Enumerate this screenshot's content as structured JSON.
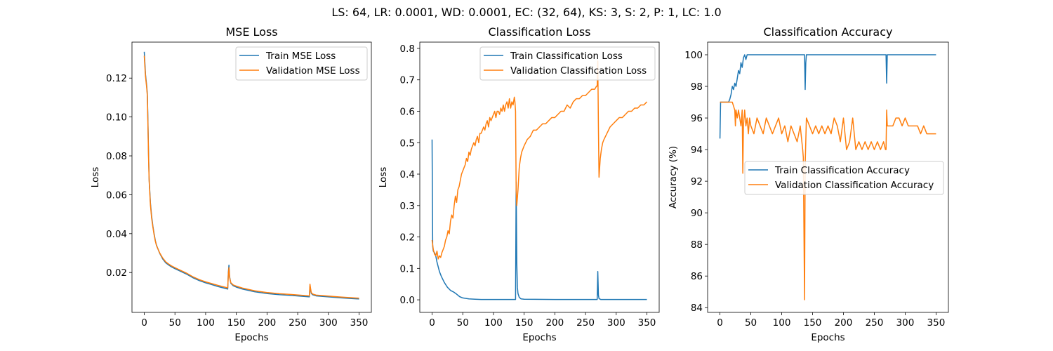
{
  "figure": {
    "suptitle": "LS: 64, LR: 0.0001, WD: 0.0001, EC: (32, 64), KS: 3, S: 2, P: 1, LC: 1.0"
  },
  "colors": {
    "train": "#1f77b4",
    "validation": "#ff7f0e"
  },
  "chart_data": [
    {
      "type": "line",
      "title": "MSE Loss",
      "xlabel": "Epochs",
      "ylabel": "Loss",
      "xlim": [
        -20,
        370
      ],
      "ylim": [
        -0.0005,
        0.1385
      ],
      "xticks": [
        0,
        50,
        100,
        150,
        200,
        250,
        300,
        350
      ],
      "yticks": [
        0.02,
        0.04,
        0.06,
        0.08,
        0.1,
        0.12
      ],
      "ytick_labels": [
        "0.02",
        "0.04",
        "0.06",
        "0.08",
        "0.10",
        "0.12"
      ],
      "legend": "upper right",
      "series": [
        {
          "name": "Train MSE Loss",
          "color": "#1f77b4",
          "x": [
            0,
            1,
            2,
            3,
            4,
            5,
            6,
            7,
            8,
            10,
            12,
            14,
            16,
            18,
            20,
            25,
            30,
            35,
            40,
            45,
            50,
            60,
            70,
            80,
            90,
            100,
            110,
            120,
            130,
            136,
            137,
            138,
            139,
            141,
            145,
            150,
            160,
            180,
            200,
            220,
            240,
            260,
            269,
            270,
            271,
            272,
            274,
            280,
            300,
            320,
            340,
            350
          ],
          "y": [
            0.1335,
            0.128,
            0.122,
            0.119,
            0.116,
            0.112,
            0.098,
            0.081,
            0.068,
            0.056,
            0.049,
            0.044,
            0.04,
            0.0365,
            0.034,
            0.03,
            0.027,
            0.025,
            0.0238,
            0.0228,
            0.022,
            0.0205,
            0.019,
            0.0172,
            0.0158,
            0.0147,
            0.0138,
            0.0128,
            0.012,
            0.0115,
            0.02,
            0.0238,
            0.018,
            0.0145,
            0.0132,
            0.0125,
            0.0115,
            0.0101,
            0.0092,
            0.0086,
            0.0082,
            0.0077,
            0.0075,
            0.0128,
            0.0112,
            0.0094,
            0.0086,
            0.008,
            0.0075,
            0.007,
            0.0066,
            0.0064
          ]
        },
        {
          "name": "Validation MSE Loss",
          "color": "#ff7f0e",
          "x": [
            0,
            1,
            2,
            3,
            4,
            5,
            6,
            7,
            8,
            10,
            12,
            14,
            16,
            18,
            20,
            25,
            30,
            35,
            40,
            45,
            50,
            60,
            70,
            80,
            90,
            100,
            110,
            120,
            130,
            136,
            137,
            138,
            139,
            141,
            145,
            150,
            160,
            180,
            200,
            220,
            240,
            260,
            269,
            270,
            271,
            272,
            274,
            280,
            300,
            320,
            340,
            350
          ],
          "y": [
            0.1315,
            0.126,
            0.121,
            0.118,
            0.115,
            0.111,
            0.096,
            0.079,
            0.067,
            0.055,
            0.048,
            0.0435,
            0.0395,
            0.0362,
            0.0338,
            0.0302,
            0.0275,
            0.0255,
            0.0243,
            0.0233,
            0.0225,
            0.021,
            0.0195,
            0.0177,
            0.0163,
            0.0152,
            0.0143,
            0.0134,
            0.0126,
            0.0121,
            0.019,
            0.0225,
            0.0175,
            0.0148,
            0.0136,
            0.013,
            0.012,
            0.0106,
            0.0097,
            0.0091,
            0.0087,
            0.0082,
            0.008,
            0.014,
            0.0118,
            0.0098,
            0.009,
            0.0084,
            0.0079,
            0.0074,
            0.007,
            0.0068
          ]
        }
      ]
    },
    {
      "type": "line",
      "title": "Classification Loss",
      "xlabel": "Epochs",
      "ylabel": "Loss",
      "xlim": [
        -20,
        370
      ],
      "ylim": [
        -0.04,
        0.82
      ],
      "xticks": [
        0,
        50,
        100,
        150,
        200,
        250,
        300,
        350
      ],
      "yticks": [
        0.0,
        0.1,
        0.2,
        0.3,
        0.4,
        0.5,
        0.6,
        0.7,
        0.8
      ],
      "ytick_labels": [
        "0.0",
        "0.1",
        "0.2",
        "0.3",
        "0.4",
        "0.5",
        "0.6",
        "0.7",
        "0.8"
      ],
      "legend": "upper right",
      "series": [
        {
          "name": "Train Classification Loss",
          "color": "#1f77b4",
          "x": [
            0,
            1,
            2,
            4,
            6,
            8,
            10,
            12,
            15,
            20,
            25,
            30,
            35,
            40,
            45,
            50,
            60,
            70,
            80,
            100,
            120,
            136,
            137,
            138,
            139,
            140,
            142,
            145,
            150,
            200,
            250,
            269,
            270,
            271,
            272,
            275,
            300,
            350
          ],
          "y": [
            0.51,
            0.17,
            0.155,
            0.15,
            0.14,
            0.12,
            0.105,
            0.09,
            0.075,
            0.055,
            0.04,
            0.03,
            0.025,
            0.018,
            0.01,
            0.006,
            0.003,
            0.002,
            0.001,
            0.001,
            0.001,
            0.001,
            0.375,
            0.12,
            0.04,
            0.02,
            0.008,
            0.003,
            0.002,
            0.001,
            0.001,
            0.001,
            0.09,
            0.015,
            0.004,
            0.001,
            0.001,
            0.001
          ]
        },
        {
          "name": "Validation Classification Loss",
          "color": "#ff7f0e",
          "x": [
            0,
            2,
            4,
            6,
            8,
            10,
            12,
            14,
            16,
            18,
            20,
            22,
            24,
            26,
            28,
            30,
            32,
            34,
            36,
            38,
            40,
            42,
            44,
            46,
            48,
            50,
            52,
            54,
            56,
            58,
            60,
            62,
            64,
            66,
            68,
            70,
            72,
            74,
            76,
            78,
            80,
            82,
            84,
            86,
            88,
            90,
            92,
            94,
            96,
            98,
            100,
            102,
            104,
            106,
            108,
            110,
            112,
            114,
            116,
            118,
            120,
            122,
            124,
            126,
            128,
            130,
            132,
            134,
            135,
            136,
            137,
            138,
            140,
            142,
            144,
            146,
            148,
            150,
            155,
            160,
            165,
            170,
            175,
            180,
            185,
            190,
            195,
            200,
            205,
            210,
            215,
            220,
            225,
            230,
            235,
            240,
            245,
            250,
            255,
            260,
            265,
            268,
            269,
            270,
            271,
            272,
            274,
            276,
            278,
            280,
            285,
            290,
            295,
            300,
            305,
            310,
            315,
            320,
            325,
            330,
            335,
            340,
            345,
            350
          ],
          "y": [
            0.19,
            0.16,
            0.145,
            0.14,
            0.155,
            0.13,
            0.14,
            0.135,
            0.15,
            0.16,
            0.17,
            0.19,
            0.2,
            0.22,
            0.21,
            0.25,
            0.27,
            0.26,
            0.3,
            0.33,
            0.31,
            0.35,
            0.36,
            0.38,
            0.4,
            0.41,
            0.42,
            0.43,
            0.45,
            0.44,
            0.47,
            0.46,
            0.48,
            0.49,
            0.5,
            0.49,
            0.51,
            0.52,
            0.5,
            0.53,
            0.53,
            0.54,
            0.55,
            0.54,
            0.56,
            0.57,
            0.55,
            0.58,
            0.57,
            0.58,
            0.59,
            0.6,
            0.58,
            0.6,
            0.6,
            0.59,
            0.61,
            0.6,
            0.62,
            0.6,
            0.62,
            0.63,
            0.61,
            0.64,
            0.61,
            0.63,
            0.62,
            0.645,
            0.63,
            0.6,
            0.35,
            0.3,
            0.35,
            0.42,
            0.45,
            0.47,
            0.48,
            0.49,
            0.51,
            0.52,
            0.54,
            0.54,
            0.55,
            0.56,
            0.56,
            0.57,
            0.58,
            0.58,
            0.59,
            0.6,
            0.6,
            0.62,
            0.61,
            0.63,
            0.64,
            0.64,
            0.65,
            0.65,
            0.66,
            0.67,
            0.67,
            0.68,
            0.68,
            0.76,
            0.55,
            0.39,
            0.45,
            0.48,
            0.5,
            0.51,
            0.53,
            0.55,
            0.56,
            0.57,
            0.58,
            0.58,
            0.59,
            0.6,
            0.6,
            0.61,
            0.61,
            0.62,
            0.62,
            0.63
          ]
        }
      ]
    },
    {
      "type": "line",
      "title": "Classification Accuracy",
      "xlabel": "Epochs",
      "ylabel": "Accuracy (%)",
      "xlim": [
        -20,
        370
      ],
      "ylim": [
        83.7,
        100.8
      ],
      "xticks": [
        0,
        50,
        100,
        150,
        200,
        250,
        300,
        350
      ],
      "yticks": [
        84,
        86,
        88,
        90,
        92,
        94,
        96,
        98,
        100
      ],
      "ytick_labels": [
        "84",
        "86",
        "88",
        "90",
        "92",
        "94",
        "96",
        "98",
        "100"
      ],
      "legend": "center right",
      "series": [
        {
          "name": "Train Classification Accuracy",
          "color": "#1f77b4",
          "x": [
            0,
            1,
            2,
            4,
            6,
            8,
            10,
            12,
            14,
            16,
            18,
            20,
            22,
            24,
            26,
            28,
            30,
            32,
            34,
            36,
            38,
            40,
            42,
            44,
            46,
            48,
            50,
            100,
            136,
            137,
            138,
            139,
            140,
            142,
            150,
            200,
            268,
            269,
            270,
            271,
            272,
            280,
            350
          ],
          "y": [
            94.7,
            97.0,
            97.0,
            97.0,
            97.0,
            97.0,
            97.0,
            97.0,
            97.0,
            97.2,
            97.5,
            98.0,
            97.8,
            98.2,
            98.0,
            98.5,
            99.0,
            98.8,
            99.5,
            99.2,
            99.8,
            100.0,
            99.7,
            100.0,
            100.0,
            100.0,
            100.0,
            100.0,
            100.0,
            100.0,
            97.8,
            99.5,
            100.0,
            100.0,
            100.0,
            100.0,
            100.0,
            100.0,
            98.2,
            100.0,
            100.0,
            100.0,
            100.0
          ]
        },
        {
          "name": "Validation Classification Accuracy",
          "color": "#ff7f0e",
          "x": [
            0,
            5,
            10,
            15,
            20,
            24,
            25,
            26,
            28,
            30,
            32,
            34,
            36,
            37,
            38,
            40,
            42,
            44,
            46,
            48,
            50,
            55,
            60,
            65,
            70,
            75,
            80,
            85,
            90,
            95,
            100,
            105,
            110,
            115,
            120,
            125,
            130,
            134,
            135,
            136,
            137,
            138,
            140,
            145,
            150,
            155,
            160,
            165,
            170,
            175,
            180,
            185,
            190,
            195,
            200,
            205,
            210,
            215,
            220,
            225,
            230,
            235,
            240,
            245,
            250,
            255,
            260,
            265,
            268,
            269,
            270,
            271,
            275,
            280,
            285,
            290,
            295,
            300,
            305,
            310,
            315,
            320,
            325,
            330,
            335,
            340,
            345,
            350
          ],
          "y": [
            97.0,
            97.0,
            97.0,
            97.0,
            97.0,
            96.5,
            95.5,
            96.5,
            96.0,
            96.5,
            96.0,
            95.5,
            96.5,
            92.5,
            95.5,
            96.5,
            95.5,
            96.0,
            95.0,
            96.0,
            95.5,
            95.0,
            96.0,
            95.5,
            95.0,
            96.0,
            95.5,
            95.0,
            95.5,
            96.0,
            95.0,
            95.5,
            94.5,
            95.5,
            95.0,
            94.5,
            95.5,
            94.0,
            93.5,
            89.0,
            84.5,
            93.0,
            96.0,
            95.5,
            95.0,
            95.5,
            95.0,
            95.5,
            95.0,
            95.5,
            95.0,
            96.0,
            95.5,
            94.5,
            96.0,
            94.0,
            94.5,
            96.0,
            94.0,
            94.5,
            94.0,
            94.5,
            94.0,
            94.5,
            94.0,
            94.5,
            94.0,
            94.5,
            94.0,
            94.0,
            96.5,
            95.5,
            95.5,
            95.5,
            96.0,
            96.0,
            95.5,
            96.0,
            95.5,
            95.5,
            95.5,
            95.5,
            95.0,
            95.5,
            95.0,
            95.0,
            95.0,
            95.0
          ]
        }
      ]
    }
  ]
}
